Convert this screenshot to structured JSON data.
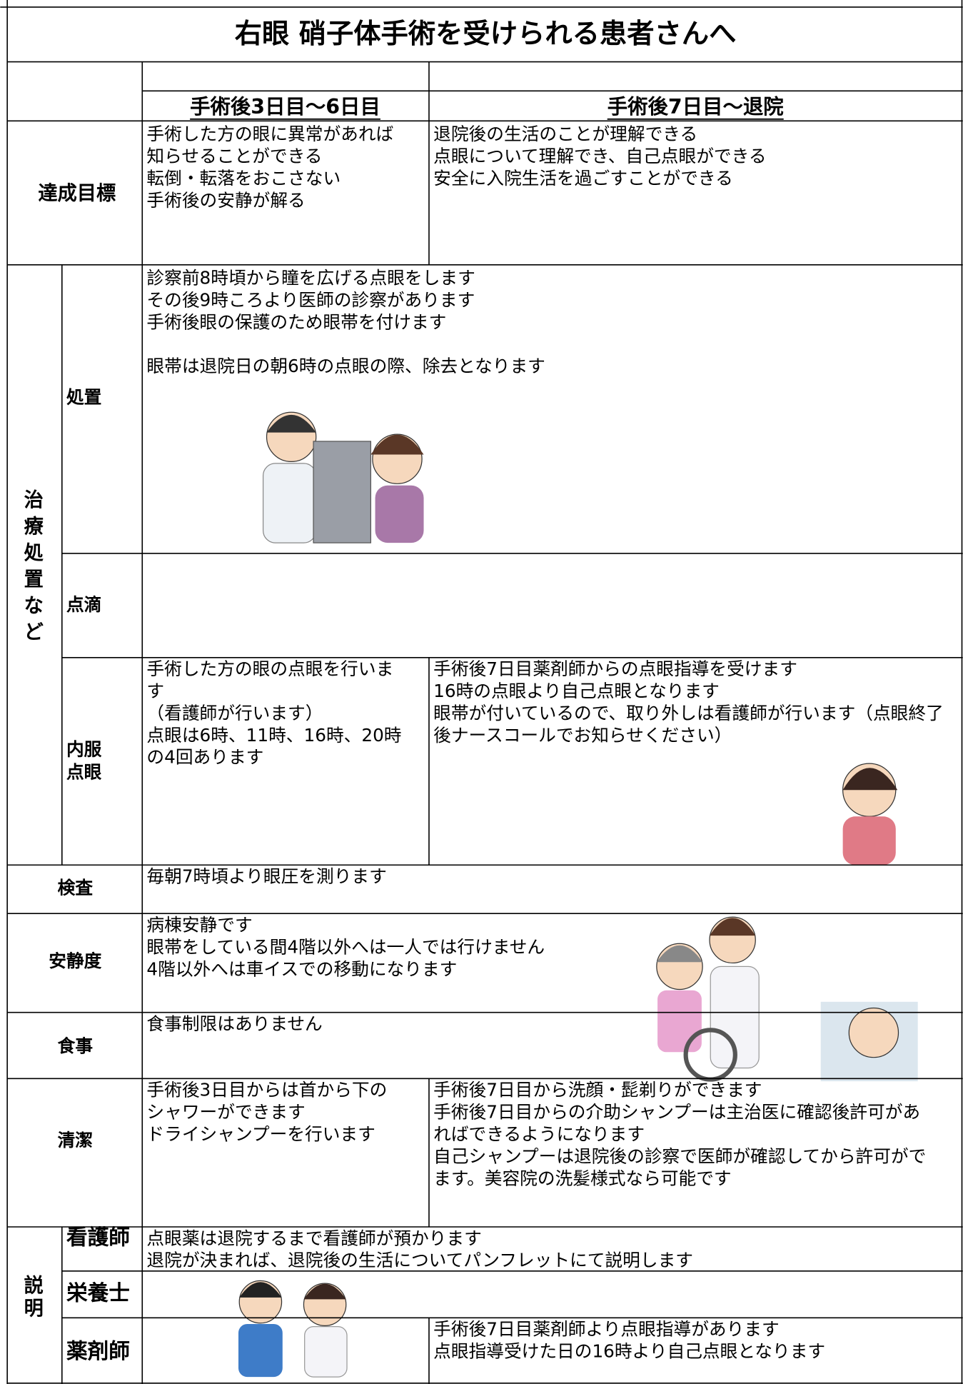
{
  "title": "右眼 硝子体手術を受けられる患者さんへ",
  "columns": [
    "手術後3日目～6日目",
    "手術後7日目～退院"
  ],
  "goals": {
    "label": "達成目標",
    "cells": [
      [
        "手術した方の眼に異常があれば",
        "知らせることができる",
        "転倒・転落をおこさない",
        "手術後の安静が解る"
      ],
      [
        "退院後の生活のことが理解できる",
        "点眼について理解でき、自己点眼ができる",
        "安全に入院生活を過ごすことができる"
      ]
    ]
  },
  "treatment": {
    "label": "治療処置など",
    "rows": [
      {
        "label": [
          "処置"
        ],
        "paragraphs": [
          [
            "診察前8時頃から瞳を広げる点眼をします",
            "その後9時ころより医師の診察があります",
            "手術後眼の保護のため眼帯を付けます"
          ],
          [
            "眼帯は退院日の朝6時の点眼の際、除去となります"
          ]
        ]
      },
      {
        "label": [
          "点滴"
        ]
      },
      {
        "label": [
          "内服",
          "点眼"
        ],
        "cells": [
          [
            "手術した方の眼の点眼を行いま",
            "す",
            "（看護師が行います）",
            "点眼は6時、11時、16時、20時",
            "の4回あります"
          ],
          [
            "手術後7日目薬剤師からの点眼指導を受けます",
            "16時の点眼より自己点眼となります",
            "眼帯が付いているので、取り外しは看護師が行います（点眼終了",
            "後ナースコールでお知らせください）"
          ]
        ]
      }
    ]
  },
  "exam": {
    "label": "検査",
    "paragraphs": [
      [
        "毎朝7時頃より眼圧を測ります"
      ]
    ]
  },
  "rest": {
    "label": "安静度",
    "paragraphs": [
      [
        "病棟安静です",
        "眼帯をしている間4階以外へは一人では行けません",
        "4階以外へは車イスでの移動になります"
      ]
    ]
  },
  "meal": {
    "label": "食事",
    "paragraphs": [
      [
        "食事制限はありません"
      ]
    ]
  },
  "hygiene": {
    "label": "清潔",
    "cells": [
      [
        "手術後3日目からは首から下の",
        "シャワーができます",
        "ドライシャンプーを行います"
      ],
      [
        "手術後7日目から洗顔・髭剃りができます",
        "手術後7日目からの介助シャンプーは主治医に確認後許可があ",
        "ればできるようになります",
        "自己シャンプーは退院後の診察で医師が確認してから許可がで",
        "ます。美容院の洗髪様式なら可能です"
      ]
    ]
  },
  "explanation": {
    "label": "説明",
    "rows": [
      {
        "label": "看護師",
        "paragraphs": [
          [
            "点眼薬は退院するまで看護師が預かります",
            "退院が決まれば、退院後の生活についてパンフレットにて説明します"
          ]
        ]
      },
      {
        "label": "栄養士"
      },
      {
        "label": "薬剤師",
        "right": [
          "手術後7日目薬剤師より点眼指導があります",
          "点眼指導受けた日の16時より自己点眼となります"
        ]
      }
    ]
  }
}
